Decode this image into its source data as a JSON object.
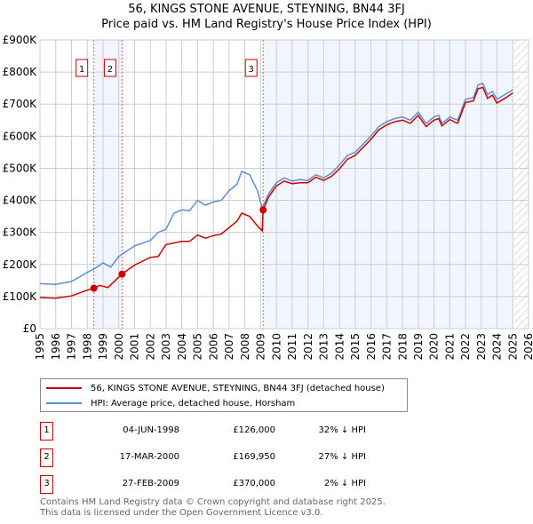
{
  "chart_data": {
    "type": "line",
    "title": "56, KINGS STONE AVENUE, STEYNING, BN44 3FJ",
    "subtitle": "Price paid vs. HM Land Registry's House Price Index (HPI)",
    "xlim": [
      1995,
      2026
    ],
    "ylim": [
      0,
      900000
    ],
    "yticks": [
      {
        "v": 0,
        "l": "£0"
      },
      {
        "v": 100000,
        "l": "£100K"
      },
      {
        "v": 200000,
        "l": "£200K"
      },
      {
        "v": 300000,
        "l": "£300K"
      },
      {
        "v": 400000,
        "l": "£400K"
      },
      {
        "v": 500000,
        "l": "£500K"
      },
      {
        "v": 600000,
        "l": "£600K"
      },
      {
        "v": 700000,
        "l": "£700K"
      },
      {
        "v": 800000,
        "l": "£800K"
      },
      {
        "v": 900000,
        "l": "£900K"
      }
    ],
    "xticks": [
      "1995",
      "1996",
      "1997",
      "1998",
      "1999",
      "2000",
      "2001",
      "2002",
      "2003",
      "2004",
      "2005",
      "2006",
      "2007",
      "2008",
      "2009",
      "2010",
      "2011",
      "2012",
      "2013",
      "2014",
      "2015",
      "2016",
      "2017",
      "2018",
      "2019",
      "2020",
      "2021",
      "2022",
      "2023",
      "2024",
      "2025",
      "2026"
    ],
    "grid": true,
    "series": [
      {
        "name": "56, KINGS STONE AVENUE, STEYNING, BN44 3FJ (detached house)",
        "color": "#cc0000",
        "x": [
          1995,
          1996,
          1997,
          1998,
          1998.42,
          1998.8,
          1999.3,
          2000.21,
          2001,
          2002,
          2002.5,
          2003,
          2004,
          2004.5,
          2005,
          2005.5,
          2006,
          2006.5,
          2007,
          2007.5,
          2007.8,
          2008.3,
          2008.8,
          2009.1,
          2009.16,
          2009.5,
          2010,
          2010.5,
          2011,
          2011.5,
          2012,
          2012.5,
          2013,
          2013.5,
          2014,
          2014.5,
          2015,
          2015.5,
          2016,
          2016.5,
          2017,
          2017.5,
          2018,
          2018.5,
          2019,
          2019.5,
          2020,
          2020.3,
          2020.5,
          2021,
          2021.5,
          2022,
          2022.5,
          2022.8,
          2023.1,
          2023.4,
          2023.7,
          2024,
          2024.5,
          2025
        ],
        "y": [
          97000,
          95000,
          102000,
          120000,
          126000,
          135000,
          128000,
          170000,
          198000,
          222000,
          225000,
          262000,
          272000,
          272000,
          292000,
          282000,
          290000,
          295000,
          315000,
          335000,
          360000,
          350000,
          320000,
          305000,
          370000,
          410000,
          445000,
          460000,
          452000,
          455000,
          455000,
          472000,
          462000,
          475000,
          498000,
          528000,
          540000,
          565000,
          590000,
          620000,
          635000,
          645000,
          650000,
          640000,
          665000,
          630000,
          650000,
          655000,
          632000,
          652000,
          640000,
          705000,
          710000,
          748000,
          752000,
          718000,
          728000,
          703000,
          718000,
          735000
        ]
      },
      {
        "name": "HPI: Average price, detached house, Horsham",
        "color": "#5b8fd4",
        "x": [
          1995,
          1996,
          1997,
          1998,
          1998.5,
          1999,
          1999.5,
          2000,
          2001,
          2002,
          2002.5,
          2003,
          2003.5,
          2004,
          2004.5,
          2005,
          2005.5,
          2006,
          2006.5,
          2007,
          2007.5,
          2007.8,
          2008.3,
          2008.8,
          2009.1,
          2009.5,
          2010,
          2010.5,
          2011,
          2011.5,
          2012,
          2012.5,
          2013,
          2013.5,
          2014,
          2014.5,
          2015,
          2015.5,
          2016,
          2016.5,
          2017,
          2017.5,
          2018,
          2018.5,
          2019,
          2019.5,
          2020,
          2020.3,
          2020.5,
          2021,
          2021.5,
          2022,
          2022.5,
          2022.8,
          2023.1,
          2023.4,
          2023.7,
          2024,
          2024.5,
          2025
        ],
        "y": [
          140000,
          138000,
          147000,
          175000,
          188000,
          205000,
          192000,
          225000,
          258000,
          275000,
          300000,
          310000,
          360000,
          370000,
          368000,
          400000,
          385000,
          395000,
          400000,
          430000,
          450000,
          490000,
          480000,
          430000,
          375000,
          420000,
          455000,
          470000,
          460000,
          465000,
          462000,
          480000,
          470000,
          485000,
          510000,
          540000,
          550000,
          575000,
          600000,
          630000,
          645000,
          655000,
          660000,
          650000,
          675000,
          640000,
          660000,
          665000,
          640000,
          660000,
          650000,
          715000,
          720000,
          760000,
          765000,
          730000,
          740000,
          715000,
          730000,
          745000
        ]
      }
    ],
    "sales": [
      {
        "n": "1",
        "x": 1998.42,
        "y": 126000
      },
      {
        "n": "2",
        "x": 2000.21,
        "y": 169950
      },
      {
        "n": "3",
        "x": 2009.16,
        "y": 370000
      }
    ],
    "shaded": [
      [
        1998.42,
        2000.21
      ],
      [
        2009.16,
        2025
      ]
    ],
    "projection_from": 2025.1
  },
  "legend": [
    "56, KINGS STONE AVENUE, STEYNING, BN44 3FJ (detached house)",
    "HPI: Average price, detached house, Horsham"
  ],
  "transactions": [
    {
      "n": "1",
      "date": "04-JUN-1998",
      "price": "£126,000",
      "hpi": "32% ↓ HPI"
    },
    {
      "n": "2",
      "date": "17-MAR-2000",
      "price": "£169,950",
      "hpi": "27% ↓ HPI"
    },
    {
      "n": "3",
      "date": "27-FEB-2009",
      "price": "£370,000",
      "hpi": "2% ↓ HPI"
    }
  ],
  "footer": [
    "Contains HM Land Registry data © Crown copyright and database right 2025.",
    "This data is licensed under the Open Government Licence v3.0."
  ]
}
